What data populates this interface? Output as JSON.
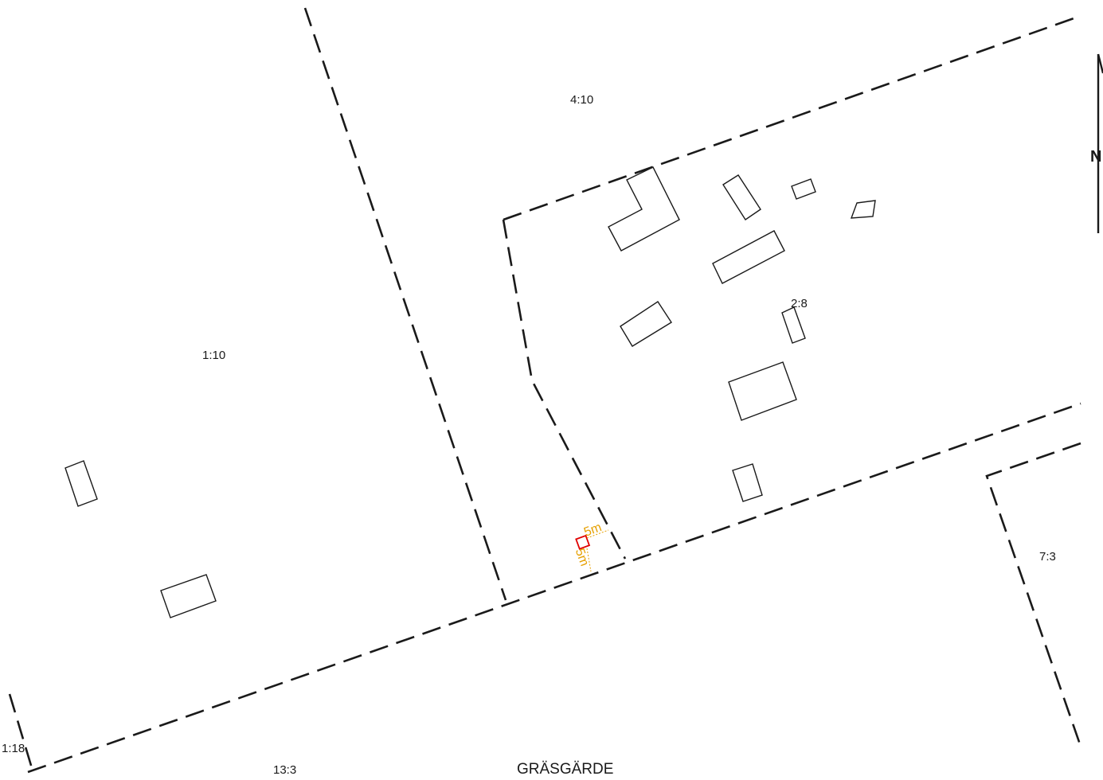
{
  "parcels": {
    "p_4_10": "4:10",
    "p_1_10": "1:10",
    "p_2_8": "2:8",
    "p_7_3": "7:3",
    "p_13_3": "13:3",
    "p_edge": "1:18"
  },
  "place_name": "GRÄSGÄRDE",
  "measurements": {
    "horizontal": "5m",
    "vertical": "5m"
  },
  "north_arrow": {
    "letter": "N"
  },
  "colors": {
    "boundary": "#1a1a1a",
    "measure": "#e6a000",
    "marker": "#e00000"
  }
}
